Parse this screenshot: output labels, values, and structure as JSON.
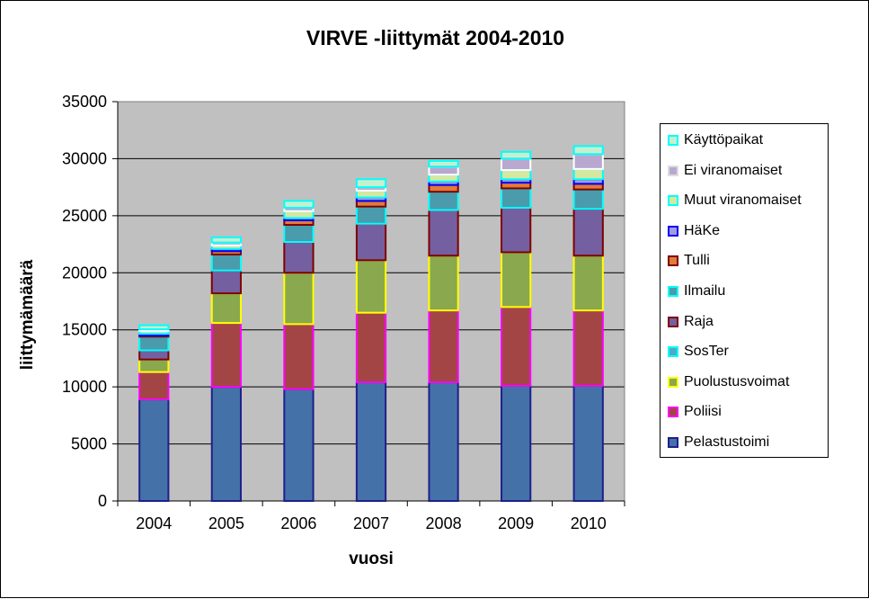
{
  "chart_data": {
    "type": "bar",
    "stacked": true,
    "title": "VIRVE -liittymät 2004-2010",
    "xlabel": "vuosi",
    "ylabel": "liittymämäärä",
    "ylim": [
      0,
      35000
    ],
    "yticks": [
      "0",
      "5000",
      "10000",
      "15000",
      "20000",
      "25000",
      "30000",
      "35000"
    ],
    "grid": true,
    "legend_position": "right",
    "categories": [
      "2004",
      "2005",
      "2006",
      "2007",
      "2008",
      "2009",
      "2010"
    ],
    "series": [
      {
        "name": "Pelastustoimi",
        "fill": "#4472A8",
        "edge": "#1F1F8C",
        "values": [
          8900,
          10000,
          9800,
          10400,
          10400,
          10100,
          10100
        ]
      },
      {
        "name": "Poliisi",
        "fill": "#A34545",
        "edge": "#FF00FF",
        "values": [
          2400,
          5600,
          5700,
          6100,
          6300,
          6900,
          6600
        ]
      },
      {
        "name": "Puolustusvoimat",
        "fill": "#8AA84E",
        "edge": "#FFFF00",
        "values": [
          1100,
          2600,
          4500,
          4600,
          4800,
          4800,
          4800
        ]
      },
      {
        "name": "SosTer",
        "fill": "#4BACC6",
        "edge": "#00FFFF",
        "values": [
          0,
          0,
          0,
          0,
          0,
          0,
          0
        ]
      },
      {
        "name": "Raja",
        "fill": "#7460A0",
        "edge": "#800000",
        "values": [
          800,
          2000,
          2700,
          3200,
          4000,
          3900,
          4100
        ]
      },
      {
        "name": "Ilmailu",
        "fill": "#4A9BAC",
        "edge": "#00FFFF",
        "values": [
          1200,
          1400,
          1500,
          1500,
          1600,
          1700,
          1700
        ]
      },
      {
        "name": "Tulli",
        "fill": "#E07B39",
        "edge": "#800000",
        "values": [
          100,
          300,
          400,
          500,
          600,
          500,
          500
        ]
      },
      {
        "name": "HäKe",
        "fill": "#A49CE0",
        "edge": "#0000FF",
        "values": [
          150,
          200,
          200,
          300,
          300,
          300,
          400
        ]
      },
      {
        "name": "Muut viranomaiset",
        "fill": "#D4E8A0",
        "edge": "#00FFFF",
        "values": [
          250,
          300,
          600,
          600,
          600,
          800,
          900
        ]
      },
      {
        "name": "Ei viranomaiset",
        "fill": "#B8A8D0",
        "edge": "#FFFFFF",
        "values": [
          150,
          250,
          300,
          300,
          700,
          1000,
          1300
        ]
      },
      {
        "name": "Käyttöpaikat",
        "fill": "#C6EFCE",
        "edge": "#00FFFF",
        "values": [
          350,
          450,
          600,
          700,
          500,
          600,
          700
        ]
      }
    ]
  }
}
